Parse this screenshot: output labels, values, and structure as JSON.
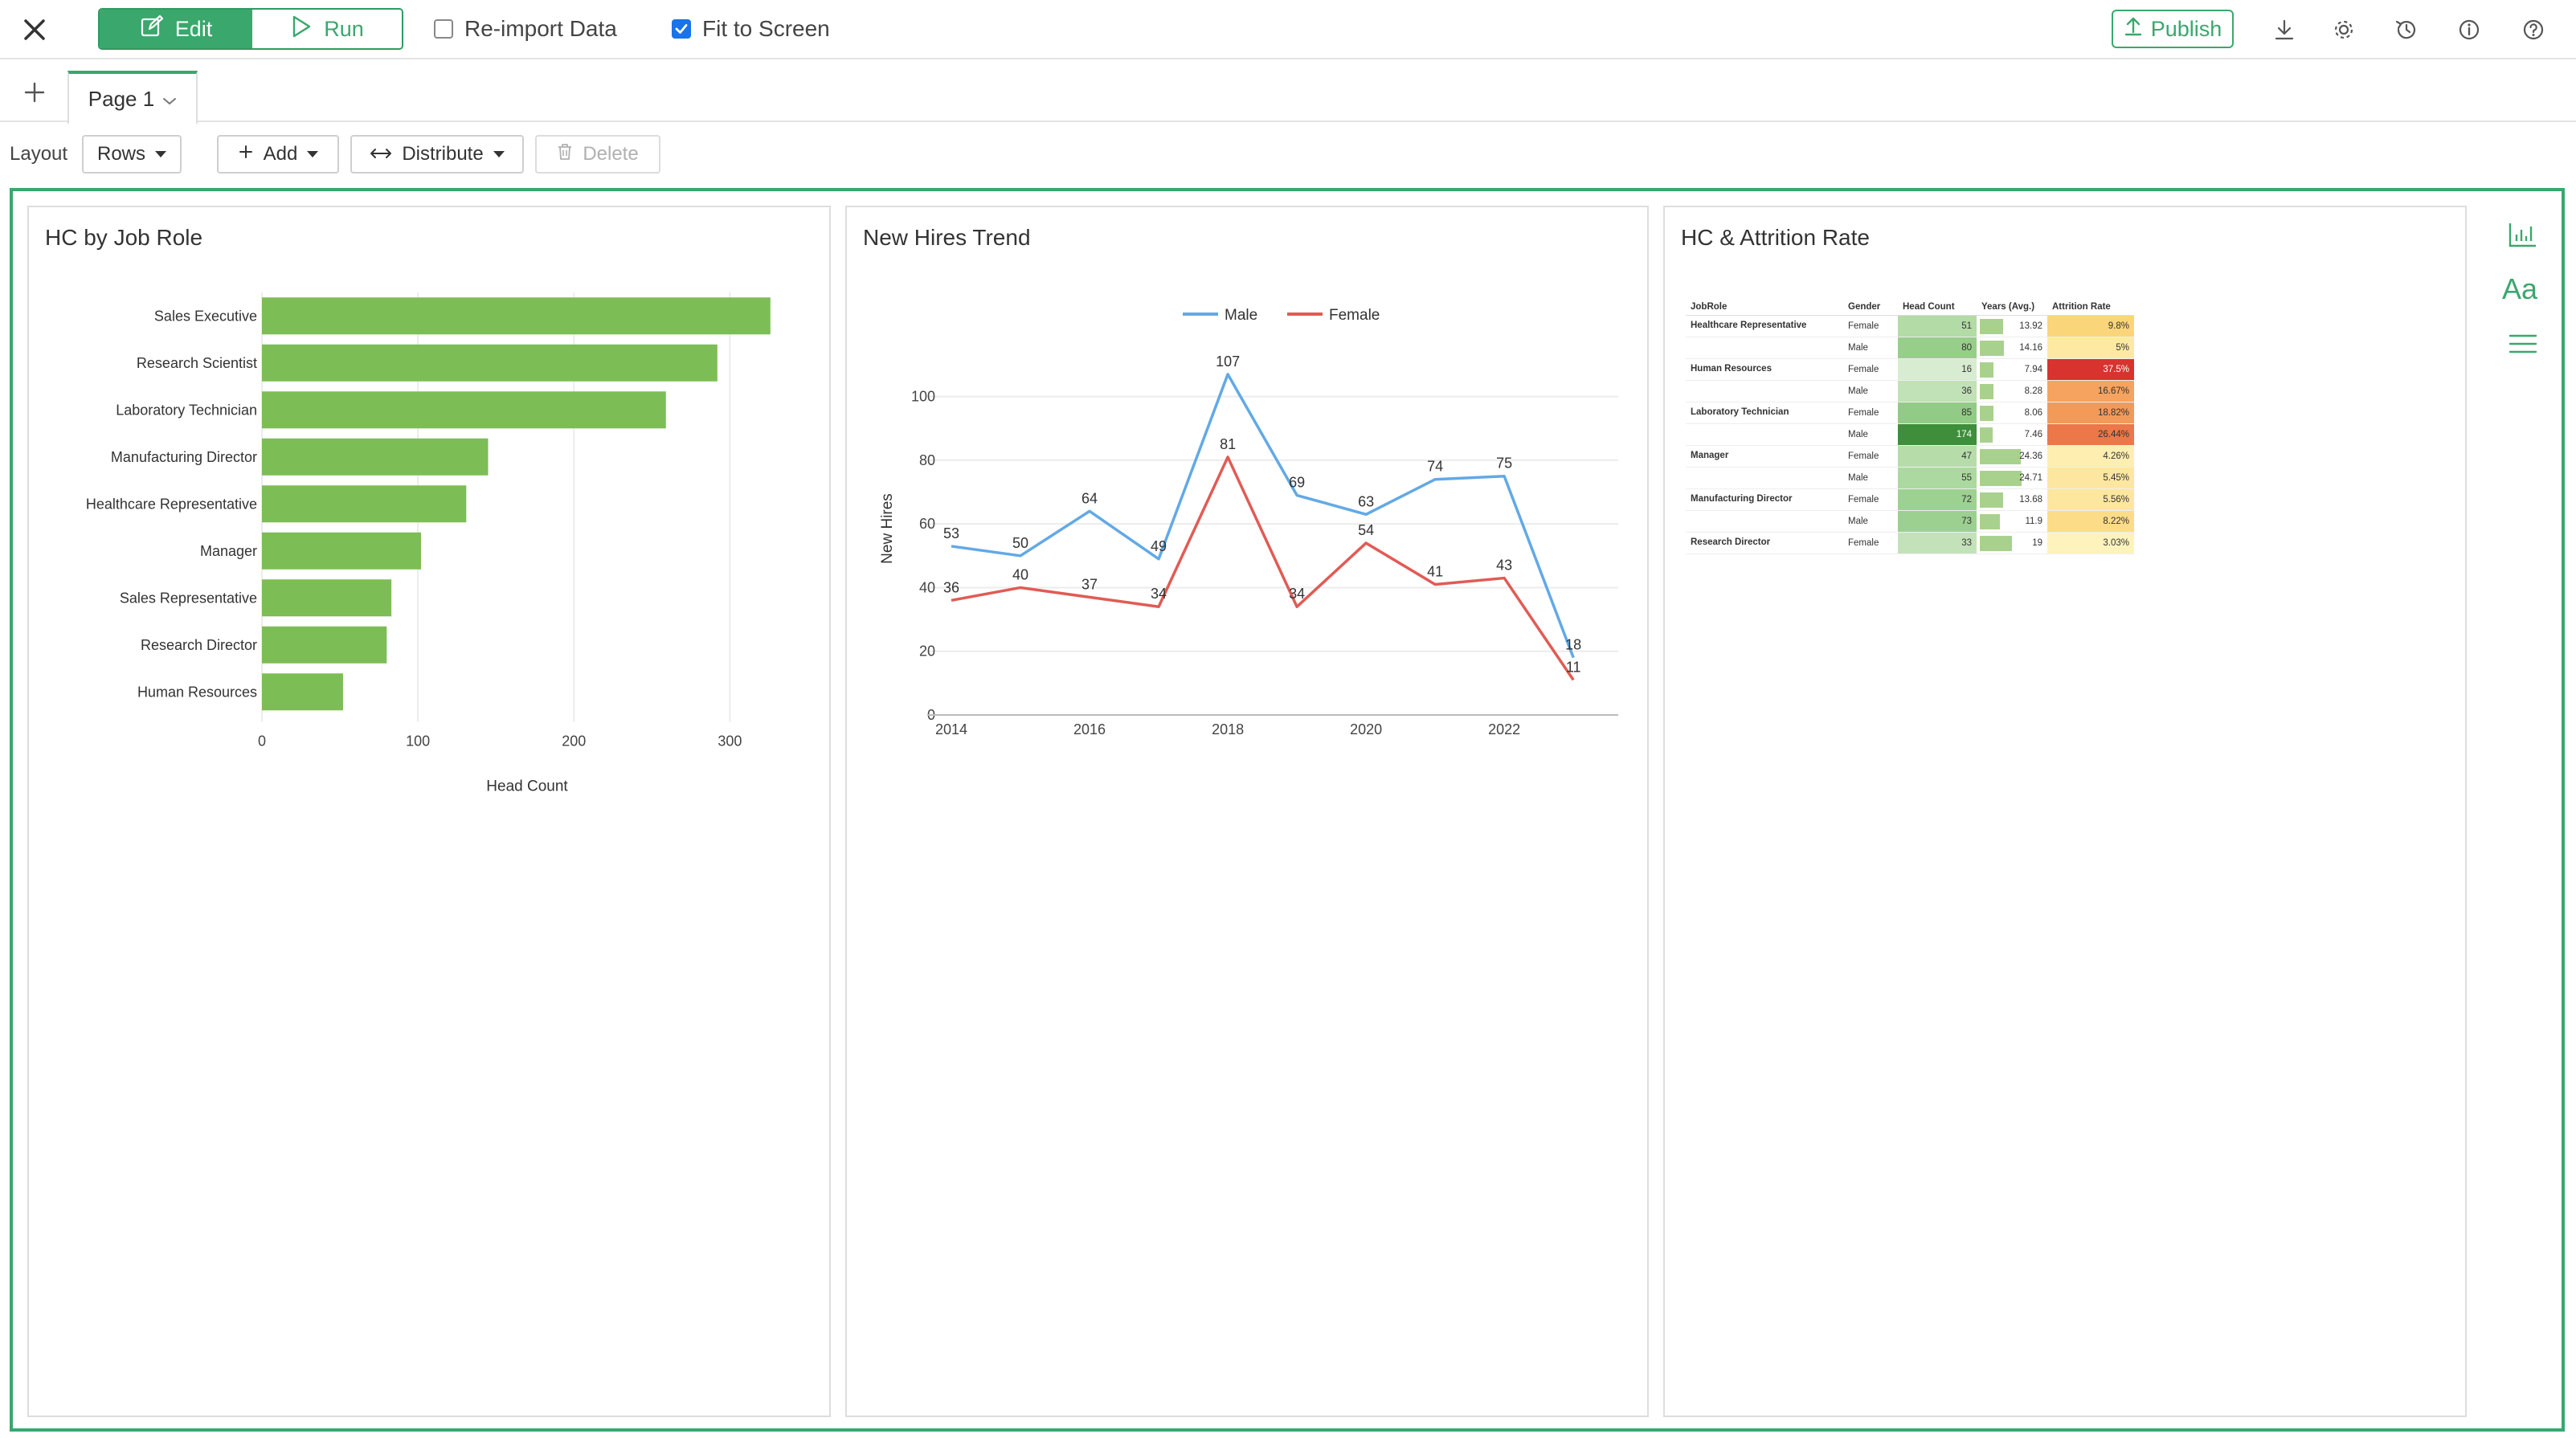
{
  "toolbar": {
    "edit_label": "Edit",
    "run_label": "Run",
    "reimport_label": "Re-import Data",
    "reimport_checked": false,
    "fit_label": "Fit to Screen",
    "fit_checked": true,
    "publish_label": "Publish",
    "accent_color": "#3aa76d"
  },
  "tabs": [
    {
      "label": "Page 1",
      "active": true
    }
  ],
  "layout_bar": {
    "label": "Layout",
    "layout_value": "Rows",
    "add_label": "Add",
    "distribute_label": "Distribute",
    "delete_label": "Delete"
  },
  "cards": {
    "job_role": {
      "title": "HC by Job Role"
    },
    "new_hires": {
      "title": "New Hires Trend"
    },
    "attrition": {
      "title": "HC & Attrition Rate"
    }
  },
  "chart_data": [
    {
      "type": "bar",
      "orientation": "horizontal",
      "categories": [
        "Sales Executive",
        "Research Scientist",
        "Laboratory Technician",
        "Manufacturing Director",
        "Healthcare Representative",
        "Manager",
        "Sales Representative",
        "Research Director",
        "Human Resources"
      ],
      "values": [
        326,
        292,
        259,
        145,
        131,
        102,
        83,
        80,
        52
      ],
      "xlabel": "Head Count",
      "xticks": [
        0,
        100,
        200,
        300
      ],
      "xlim": [
        0,
        340
      ],
      "grid": true,
      "bar_color": "#7dbd55"
    },
    {
      "type": "line",
      "x": [
        2014,
        2015,
        2016,
        2017,
        2018,
        2019,
        2020,
        2021,
        2022,
        2023
      ],
      "xticks": [
        2014,
        2016,
        2018,
        2020,
        2022
      ],
      "series": [
        {
          "name": "Male",
          "color": "#62a9e6",
          "values": [
            53,
            50,
            64,
            49,
            107,
            69,
            63,
            74,
            75,
            18
          ]
        },
        {
          "name": "Female",
          "color": "#e15b55",
          "values": [
            36,
            40,
            37,
            34,
            81,
            34,
            54,
            41,
            43,
            11
          ]
        }
      ],
      "ylabel": "New Hires",
      "yticks": [
        0,
        20,
        40,
        60,
        80,
        100
      ],
      "ylim": [
        0,
        110
      ],
      "legend": "top-center",
      "grid": true
    },
    {
      "type": "table",
      "columns": [
        "JobRole",
        "Gender",
        "Head Count",
        "Years (Avg.)",
        "Attrition Rate"
      ],
      "rows": [
        {
          "role": "Healthcare Representative",
          "gender": "Female",
          "head_count": 51,
          "years": "13.92",
          "years_val": 13.92,
          "attrition": "9.8%",
          "attr_color": "#fbd57a",
          "hc_color": "#b3dba6"
        },
        {
          "role": "",
          "gender": "Male",
          "head_count": 80,
          "years": "14.16",
          "years_val": 14.16,
          "attrition": "5%",
          "attr_color": "#fde9a2",
          "hc_color": "#97ce8a"
        },
        {
          "role": "Human Resources",
          "gender": "Female",
          "head_count": 16,
          "years": "7.94",
          "years_val": 7.94,
          "attrition": "37.5%",
          "attr_color": "#d8332f",
          "hc_color": "#d7ecd0"
        },
        {
          "role": "",
          "gender": "Male",
          "head_count": 36,
          "years": "8.28",
          "years_val": 8.28,
          "attrition": "16.67%",
          "attr_color": "#f6a35f",
          "hc_color": "#c1e1b7"
        },
        {
          "role": "Laboratory Technician",
          "gender": "Female",
          "head_count": 85,
          "years": "8.06",
          "years_val": 8.06,
          "attrition": "18.82%",
          "attr_color": "#f39a58",
          "hc_color": "#92cb85"
        },
        {
          "role": "",
          "gender": "Male",
          "head_count": 174,
          "years": "7.46",
          "years_val": 7.46,
          "attrition": "26.44%",
          "attr_color": "#ec7748",
          "hc_color": "#3f8e3c"
        },
        {
          "role": "Manager",
          "gender": "Female",
          "head_count": 47,
          "years": "24.36",
          "years_val": 24.36,
          "attrition": "4.26%",
          "attr_color": "#feeeb0",
          "hc_color": "#b6dda9"
        },
        {
          "role": "",
          "gender": "Male",
          "head_count": 55,
          "years": "24.71",
          "years_val": 24.71,
          "attrition": "5.45%",
          "attr_color": "#fde7a0",
          "hc_color": "#acd99f"
        },
        {
          "role": "Manufacturing Director",
          "gender": "Female",
          "head_count": 72,
          "years": "13.68",
          "years_val": 13.68,
          "attrition": "5.56%",
          "attr_color": "#fde79f",
          "hc_color": "#9dd191"
        },
        {
          "role": "",
          "gender": "Male",
          "head_count": 73,
          "years": "11.9",
          "years_val": 11.9,
          "attrition": "8.22%",
          "attr_color": "#fcdc87",
          "hc_color": "#9cd090"
        },
        {
          "role": "Research Director",
          "gender": "Female",
          "head_count": 33,
          "years": "19",
          "years_val": 19,
          "attrition": "3.03%",
          "attr_color": "#fff3bd",
          "hc_color": "#c4e2ba"
        }
      ]
    }
  ]
}
